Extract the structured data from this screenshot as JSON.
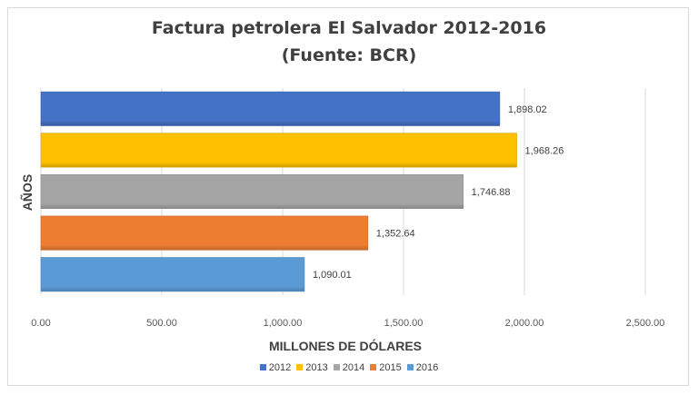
{
  "chart_data": {
    "type": "bar",
    "orientation": "horizontal",
    "title": "Factura petrolera El Salvador 2012-2016",
    "subtitle": "(Fuente: BCR)",
    "xlabel": "MILLONES DE DÓLARES",
    "ylabel": "AÑOS",
    "xlim": [
      0,
      2500
    ],
    "xticks": [
      "0.00",
      "500.00",
      "1,000.00",
      "1,500.00",
      "2,000.00",
      "2,500.00"
    ],
    "grid": true,
    "legend_position": "bottom",
    "series": [
      {
        "name": "2012",
        "value": 1898.02,
        "label": "1,898.02",
        "color": "#4472c4"
      },
      {
        "name": "2013",
        "value": 1968.26,
        "label": "1,968.26",
        "color": "#ffc000"
      },
      {
        "name": "2014",
        "value": 1746.88,
        "label": "1,746.88",
        "color": "#a5a5a5"
      },
      {
        "name": "2015",
        "value": 1352.64,
        "label": "1,352.64",
        "color": "#ed7d31"
      },
      {
        "name": "2016",
        "value": 1090.01,
        "label": "1,090.01",
        "color": "#5b9bd5"
      }
    ]
  }
}
